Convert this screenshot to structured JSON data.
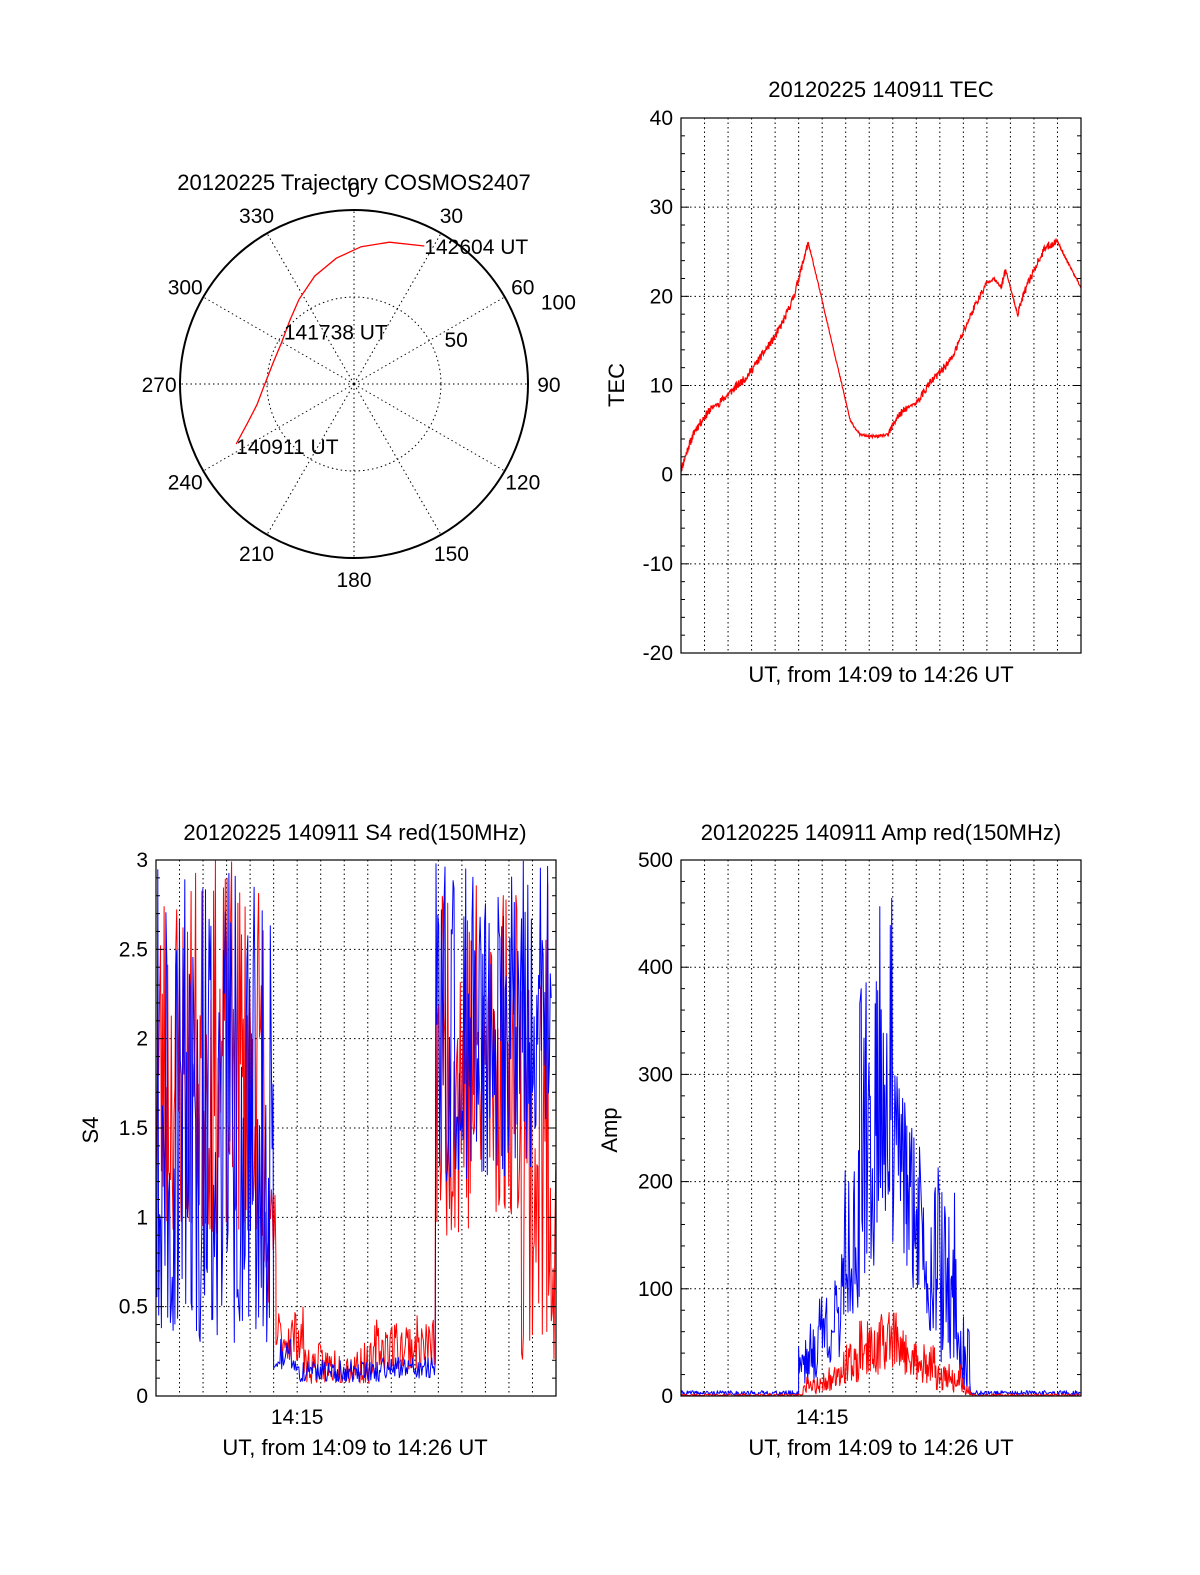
{
  "colors": {
    "red": "#ff0000",
    "blue": "#0000ff",
    "axis": "#000000",
    "background": "#ffffff"
  },
  "chart_data": [
    {
      "id": "trajectory",
      "type": "polar",
      "title": "20120225 Trajectory COSMOS2407",
      "angle_labels": [
        "0",
        "30",
        "60",
        "90",
        "120",
        "150",
        "180",
        "210",
        "240",
        "270",
        "300",
        "330"
      ],
      "radius_labels": [
        "50",
        "100"
      ],
      "angle_direction": "clockwise, 0 at top",
      "radius_range": [
        0,
        100
      ],
      "track": {
        "series": "red",
        "points": [
          {
            "azimuth": 243,
            "radius": 76
          },
          {
            "azimuth": 250,
            "radius": 65
          },
          {
            "azimuth": 258,
            "radius": 57
          },
          {
            "azimuth": 268,
            "radius": 52
          },
          {
            "azimuth": 285,
            "radius": 48
          },
          {
            "azimuth": 300,
            "radius": 48
          },
          {
            "azimuth": 315,
            "radius": 52
          },
          {
            "azimuth": 327,
            "radius": 58
          },
          {
            "azimuth": 340,
            "radius": 66
          },
          {
            "azimuth": 352,
            "radius": 73
          },
          {
            "azimuth": 3,
            "radius": 79
          },
          {
            "azimuth": 14,
            "radius": 84
          },
          {
            "azimuth": 27,
            "radius": 89
          }
        ]
      },
      "annotations": [
        {
          "text": "140911 UT",
          "azimuth": 243,
          "radius": 76
        },
        {
          "text": "141738 UT",
          "azimuth": 347,
          "radius": 31
        },
        {
          "text": "142604 UT",
          "azimuth": 27,
          "radius": 89
        }
      ]
    },
    {
      "id": "tec",
      "type": "line",
      "title": "20120225 140911 TEC",
      "xlabel": "UT, from 14:09 to 14:26 UT",
      "ylabel": "TEC",
      "x_unit": "minutes after 14:09",
      "xlim": [
        0,
        17.0
      ],
      "ylim": [
        -20,
        40
      ],
      "yticks": [
        -20,
        -10,
        0,
        10,
        20,
        30,
        40
      ],
      "xticks": [],
      "x_gridlines": [
        1,
        2,
        3,
        4,
        5,
        6,
        7,
        8,
        9,
        10,
        11,
        12,
        13,
        14,
        15,
        16
      ],
      "series": [
        {
          "color": "red",
          "x": [
            0.0,
            0.3,
            0.6,
            1.0,
            1.3,
            1.6,
            2.0,
            2.4,
            2.8,
            3.2,
            3.6,
            4.0,
            4.4,
            4.8,
            5.1,
            5.4,
            5.6,
            6.0,
            6.4,
            6.8,
            7.2,
            7.6,
            8.0,
            8.4,
            8.8,
            9.2,
            9.6,
            10.0,
            10.5,
            11.0,
            11.5,
            12.0,
            12.5,
            13.0,
            13.3,
            13.6,
            13.8,
            14.1,
            14.3,
            14.6,
            15.0,
            15.5,
            16.0,
            16.3,
            16.6,
            17.0
          ],
          "y": [
            0.5,
            3.0,
            5.0,
            6.5,
            7.5,
            8.0,
            9.0,
            10.0,
            11.0,
            12.5,
            14.0,
            15.5,
            17.5,
            20.0,
            23.0,
            26.0,
            24.0,
            19.5,
            15.0,
            10.5,
            6.0,
            4.5,
            4.3,
            4.3,
            4.5,
            6.5,
            7.5,
            8.0,
            10.0,
            11.5,
            13.0,
            16.0,
            19.0,
            21.5,
            22.0,
            21.0,
            23.0,
            20.0,
            18.0,
            20.5,
            23.0,
            25.5,
            26.2,
            24.5,
            23.0,
            21.0
          ]
        }
      ]
    },
    {
      "id": "s4",
      "type": "line",
      "title": "20120225 140911 S4 red(150MHz)",
      "xlabel": "UT, from 14:09 to 14:26 UT",
      "ylabel": "S4",
      "x_unit": "minutes after 14:09",
      "xlim": [
        0,
        17.0
      ],
      "ylim": [
        0,
        3
      ],
      "yticks": [
        "0",
        "0.5",
        "1",
        "1.5",
        "2",
        "2.5",
        "3"
      ],
      "xticks": [
        {
          "value": 6.0,
          "label": "14:15"
        }
      ],
      "x_gridlines": [
        1,
        2,
        3,
        4,
        5,
        6,
        7,
        8,
        9,
        10,
        11,
        12,
        13,
        14,
        15,
        16
      ],
      "series": [
        {
          "color": "red",
          "segments": [
            {
              "x0": 0.0,
              "x1": 4.6,
              "low": 0.9,
              "high": 3.0
            },
            {
              "x0": 4.6,
              "x1": 5.1,
              "low": 0.5,
              "high": 1.2
            },
            {
              "x0": 5.1,
              "x1": 6.3,
              "low": 0.2,
              "high": 0.5
            },
            {
              "x0": 6.3,
              "x1": 9.3,
              "low": 0.07,
              "high": 0.3
            },
            {
              "x0": 9.3,
              "x1": 11.9,
              "low": 0.15,
              "high": 0.45
            },
            {
              "x0": 11.9,
              "x1": 13.5,
              "low": 0.9,
              "high": 3.0
            },
            {
              "x0": 13.5,
              "x1": 15.5,
              "low": 1.0,
              "high": 3.0
            },
            {
              "x0": 15.5,
              "x1": 17.0,
              "low": 0.2,
              "high": 2.9
            }
          ]
        },
        {
          "color": "blue",
          "segments": [
            {
              "x0": 0.0,
              "x1": 5.0,
              "low": 0.3,
              "high": 3.0
            },
            {
              "x0": 5.0,
              "x1": 5.8,
              "low": 0.15,
              "high": 0.32
            },
            {
              "x0": 5.8,
              "x1": 9.5,
              "low": 0.08,
              "high": 0.2
            },
            {
              "x0": 9.5,
              "x1": 11.9,
              "low": 0.1,
              "high": 0.22
            },
            {
              "x0": 11.9,
              "x1": 16.8,
              "low": 1.2,
              "high": 3.0
            }
          ]
        }
      ]
    },
    {
      "id": "amp",
      "type": "line",
      "title": "20120225 140911 Amp red(150MHz)",
      "xlabel": "UT, from 14:09 to 14:26 UT",
      "ylabel": "Amp",
      "x_unit": "minutes after 14:09",
      "xlim": [
        0,
        17.0
      ],
      "ylim": [
        0,
        500
      ],
      "yticks": [
        0,
        100,
        200,
        300,
        400,
        500
      ],
      "xticks": [
        {
          "value": 6.0,
          "label": "14:15"
        }
      ],
      "x_gridlines": [
        1,
        2,
        3,
        4,
        5,
        6,
        7,
        8,
        9,
        10,
        11,
        12,
        13,
        14,
        15,
        16
      ],
      "series": [
        {
          "color": "blue",
          "segments": [
            {
              "x0": 0.0,
              "x1": 5.0,
              "low": 1,
              "high": 5
            },
            {
              "x0": 5.0,
              "x1": 5.8,
              "low": 10,
              "high": 70
            },
            {
              "x0": 5.8,
              "x1": 6.8,
              "low": 30,
              "high": 110
            },
            {
              "x0": 6.8,
              "x1": 7.6,
              "low": 70,
              "high": 230
            },
            {
              "x0": 7.6,
              "x1": 8.3,
              "low": 110,
              "high": 390
            },
            {
              "x0": 8.3,
              "x1": 9.0,
              "low": 160,
              "high": 465
            },
            {
              "x0": 9.0,
              "x1": 9.6,
              "low": 130,
              "high": 330
            },
            {
              "x0": 9.6,
              "x1": 10.3,
              "low": 100,
              "high": 260
            },
            {
              "x0": 10.3,
              "x1": 11.0,
              "low": 60,
              "high": 220
            },
            {
              "x0": 11.0,
              "x1": 11.8,
              "low": 30,
              "high": 190
            },
            {
              "x0": 11.8,
              "x1": 12.3,
              "low": 5,
              "high": 80
            },
            {
              "x0": 12.3,
              "x1": 17.0,
              "low": 1,
              "high": 5
            }
          ]
        },
        {
          "color": "red",
          "segments": [
            {
              "x0": 0.0,
              "x1": 5.2,
              "low": 0,
              "high": 2
            },
            {
              "x0": 5.2,
              "x1": 6.0,
              "low": 2,
              "high": 18
            },
            {
              "x0": 6.0,
              "x1": 6.8,
              "low": 5,
              "high": 28
            },
            {
              "x0": 6.8,
              "x1": 7.6,
              "low": 12,
              "high": 50
            },
            {
              "x0": 7.6,
              "x1": 8.4,
              "low": 20,
              "high": 70
            },
            {
              "x0": 8.4,
              "x1": 9.2,
              "low": 25,
              "high": 80
            },
            {
              "x0": 9.2,
              "x1": 10.0,
              "low": 20,
              "high": 65
            },
            {
              "x0": 10.0,
              "x1": 10.8,
              "low": 12,
              "high": 50
            },
            {
              "x0": 10.8,
              "x1": 11.5,
              "low": 5,
              "high": 30
            },
            {
              "x0": 11.5,
              "x1": 12.0,
              "low": 3,
              "high": 30
            },
            {
              "x0": 12.0,
              "x1": 12.3,
              "low": 1,
              "high": 10
            },
            {
              "x0": 12.3,
              "x1": 17.0,
              "low": 0,
              "high": 2
            }
          ]
        }
      ]
    }
  ]
}
